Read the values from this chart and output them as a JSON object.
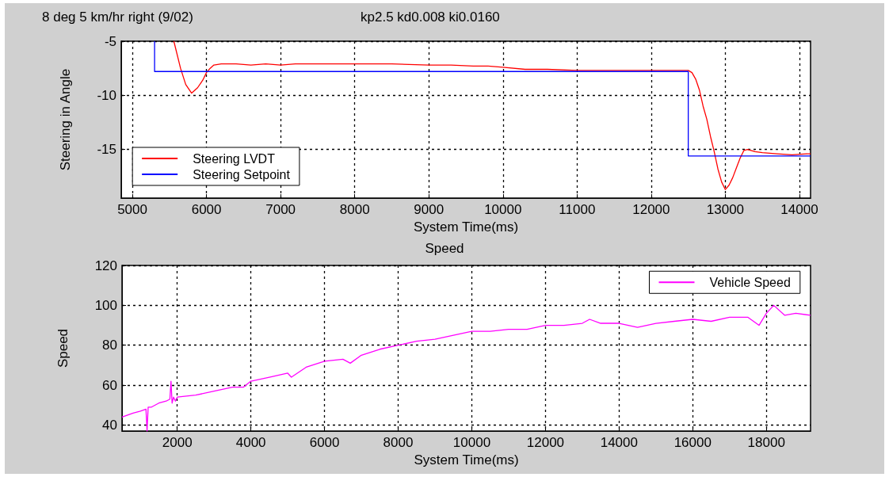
{
  "chart_data": [
    {
      "type": "line",
      "title": "8 deg 5 km/hr right (9/02)",
      "subtitle": "kp2.5 kd0.008 ki0.0160",
      "xlabel": "System Time(ms)",
      "ylabel": "Steering in Angle",
      "xlim": [
        4850,
        14150
      ],
      "xticks": [
        5000,
        6000,
        7000,
        8000,
        9000,
        10000,
        11000,
        12000,
        13000,
        14000
      ],
      "ylim": [
        -19.5,
        -5
      ],
      "yticks": [
        -15,
        -10,
        -5
      ],
      "grid": true,
      "legend": "bottom left",
      "marker": "none",
      "series": [
        {
          "name": "Steering LVDT",
          "color": "#ff0000",
          "x": [
            5560,
            5650,
            5720,
            5800,
            5880,
            5950,
            6000,
            6050,
            6100,
            6200,
            6400,
            6600,
            6800,
            7000,
            7200,
            7500,
            8000,
            8500,
            9000,
            9300,
            9600,
            9800,
            10000,
            10300,
            10600,
            11000,
            11500,
            12000,
            12300,
            12500,
            12550,
            12600,
            12650,
            12700,
            12750,
            12800,
            12850,
            12900,
            12950,
            13000,
            13050,
            13100,
            13150,
            13200,
            13250,
            13300,
            13400,
            13500,
            13700,
            13900,
            14100,
            14150
          ],
          "values": [
            -5,
            -7.5,
            -9.0,
            -9.8,
            -9.3,
            -8.6,
            -7.9,
            -7.5,
            -7.2,
            -7.1,
            -7.1,
            -7.2,
            -7.1,
            -7.2,
            -7.1,
            -7.1,
            -7.1,
            -7.1,
            -7.2,
            -7.2,
            -7.3,
            -7.3,
            -7.4,
            -7.6,
            -7.6,
            -7.7,
            -7.7,
            -7.7,
            -7.7,
            -7.7,
            -7.9,
            -8.5,
            -9.5,
            -11.0,
            -12.2,
            -13.8,
            -15.2,
            -16.8,
            -18.0,
            -18.7,
            -18.3,
            -17.6,
            -16.7,
            -15.8,
            -15.1,
            -15.0,
            -15.2,
            -15.3,
            -15.4,
            -15.5,
            -15.4,
            -15.4
          ]
        },
        {
          "name": "Steering Setpoint",
          "color": "#0000ff",
          "x": [
            5300,
            5300,
            12500,
            12500,
            14150
          ],
          "values": [
            -5,
            -7.8,
            -7.8,
            -15.6,
            -15.6
          ]
        }
      ]
    },
    {
      "type": "line",
      "title": "Speed",
      "xlabel": "System Time(ms)",
      "ylabel": "Speed",
      "xlim": [
        500,
        19200
      ],
      "xticks": [
        2000,
        4000,
        6000,
        8000,
        10000,
        12000,
        14000,
        16000,
        18000
      ],
      "ylim": [
        37,
        120
      ],
      "yticks": [
        40,
        60,
        80,
        100,
        120
      ],
      "grid": true,
      "legend": "top right",
      "marker": "none",
      "series": [
        {
          "name": "Vehicle Speed",
          "color": "#ff00ff",
          "x": [
            500,
            800,
            1000,
            1150,
            1180,
            1210,
            1300,
            1500,
            1700,
            1800,
            1830,
            1860,
            1900,
            1950,
            2000,
            2500,
            3000,
            3500,
            3800,
            4000,
            4500,
            5000,
            5100,
            5500,
            6000,
            6500,
            6700,
            7000,
            7500,
            8000,
            8500,
            9000,
            9500,
            10000,
            10500,
            11000,
            11500,
            12000,
            12500,
            13000,
            13200,
            13500,
            14000,
            14500,
            15000,
            15500,
            16000,
            16500,
            17000,
            17500,
            17800,
            18000,
            18200,
            18500,
            18800,
            19200
          ],
          "values": [
            44,
            46,
            47,
            48,
            37,
            49,
            49,
            51,
            52,
            53,
            62,
            51,
            54,
            52,
            54,
            55,
            57,
            59,
            59,
            62,
            64,
            66,
            64,
            69,
            72,
            73,
            71,
            75,
            78,
            80,
            82,
            83,
            85,
            87,
            87,
            88,
            88,
            90,
            90,
            91,
            93,
            91,
            91,
            89,
            91,
            92,
            93,
            92,
            94,
            94,
            90,
            96,
            100,
            95,
            96,
            95
          ]
        }
      ]
    }
  ]
}
